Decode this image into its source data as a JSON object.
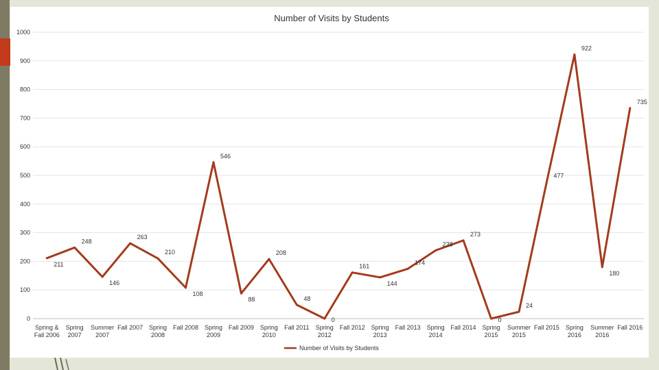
{
  "chart_data": {
    "type": "line",
    "title": "Number of Visits by Students",
    "categories": [
      [
        "Spring &",
        "Fall 2006"
      ],
      [
        "Spring",
        "2007"
      ],
      [
        "Summer",
        "2007"
      ],
      [
        "Fall 2007"
      ],
      [
        "Spring",
        "2008"
      ],
      [
        "Fall 2008"
      ],
      [
        "Spring",
        "2009"
      ],
      [
        "Fall 2009"
      ],
      [
        "Spring",
        "2010"
      ],
      [
        "Fall 2011"
      ],
      [
        "Spring",
        "2012"
      ],
      [
        "Fall 2012"
      ],
      [
        "Spring",
        "2013"
      ],
      [
        "Fall 2013"
      ],
      [
        "Spring",
        "2014"
      ],
      [
        "Fall 2014"
      ],
      [
        "Spring",
        "2015"
      ],
      [
        "Summer",
        "2015"
      ],
      [
        "Fall 2015"
      ],
      [
        "Spring",
        "2016"
      ],
      [
        "Summer",
        "2016"
      ],
      [
        "Fall 2016"
      ]
    ],
    "series": [
      {
        "name": "Number of Visits by Students",
        "color": "#a33b1c",
        "values": [
          211,
          248,
          146,
          263,
          210,
          108,
          546,
          88,
          208,
          48,
          0,
          161,
          144,
          174,
          238,
          273,
          0,
          24,
          477,
          922,
          180,
          735
        ]
      }
    ],
    "y_ticks": [
      "0",
      "100",
      "200",
      "300",
      "400",
      "500",
      "600",
      "700",
      "800",
      "900",
      "1000"
    ],
    "ylim": [
      0,
      1000
    ],
    "grid": true,
    "legend": "bottom"
  }
}
